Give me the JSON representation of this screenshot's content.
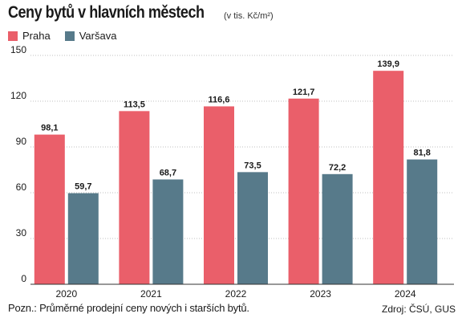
{
  "colors": {
    "praha": "#ea5f6a",
    "varsava": "#577a8a",
    "grid": "#bfbfbf",
    "axis": "#333333"
  },
  "chart_data": {
    "type": "bar",
    "title": "Ceny bytů v hlavních městech",
    "subtitle": "(v tis. Kč/m²)",
    "categories": [
      "2020",
      "2021",
      "2022",
      "2023",
      "2024"
    ],
    "series": [
      {
        "name": "Praha",
        "values": [
          98.1,
          113.5,
          116.6,
          121.7,
          139.9
        ],
        "labels": [
          "98,1",
          "113,5",
          "116,6",
          "121,7",
          "139,9"
        ]
      },
      {
        "name": "Varšava",
        "values": [
          59.7,
          68.7,
          73.5,
          72.2,
          81.8
        ],
        "labels": [
          "59,7",
          "68,7",
          "73,5",
          "72,2",
          "81,8"
        ]
      }
    ],
    "ylim": [
      0,
      150
    ],
    "yticks": [
      0,
      30,
      60,
      90,
      120,
      150
    ],
    "grid": true,
    "legend": "top-left"
  },
  "footer": {
    "note": "Pozn.: Průměrné prodejní ceny nových i starších bytů.",
    "source": "Zdroj: ČSÚ, GUS"
  }
}
